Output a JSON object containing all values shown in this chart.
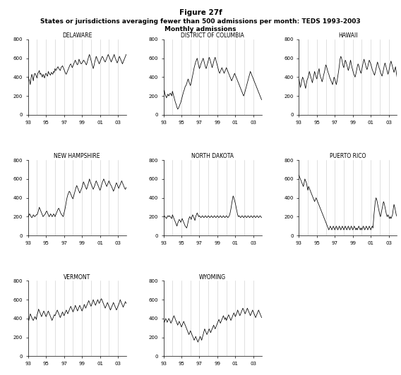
{
  "title_line1": "Figure 27f",
  "title_line2": "States or jurisdictions averaging fewer than 500 admissions per month: TEDS 1993-2003",
  "title_line3": "Monthly admissions",
  "xlim": [
    0,
    131
  ],
  "ylim": [
    0,
    800
  ],
  "yticks": [
    0,
    200,
    400,
    600,
    800
  ],
  "xtick_positions": [
    0,
    24,
    48,
    72,
    96,
    120
  ],
  "xtick_labels": [
    "93",
    "95",
    "97",
    "99",
    "01",
    "03"
  ],
  "vline_positions": [
    12,
    24,
    36,
    48,
    60,
    72,
    84,
    96,
    108,
    120
  ],
  "line_color": "#000000",
  "background_color": "#ffffff",
  "delaware": [
    410,
    380,
    360,
    320,
    390,
    430,
    400,
    360,
    420,
    440,
    430,
    410,
    390,
    440,
    450,
    470,
    430,
    440,
    420,
    400,
    430,
    410,
    390,
    430,
    440,
    420,
    410,
    460,
    440,
    430,
    420,
    450,
    440,
    430,
    460,
    450,
    490,
    470,
    480,
    500,
    510,
    490,
    480,
    470,
    500,
    510,
    520,
    500,
    480,
    460,
    440,
    430,
    450,
    470,
    490,
    510,
    530,
    540,
    520,
    500,
    520,
    540,
    560,
    580,
    560,
    540,
    530,
    550,
    590,
    570,
    550,
    540,
    550,
    560,
    580,
    570,
    560,
    540,
    530,
    560,
    590,
    620,
    640,
    610,
    580,
    550,
    520,
    490,
    520,
    560,
    590,
    620,
    600,
    580,
    560,
    540,
    560,
    580,
    600,
    620,
    610,
    590,
    570,
    560,
    580,
    600,
    620,
    640,
    620,
    600,
    580,
    560,
    580,
    600,
    620,
    640,
    610,
    590,
    570,
    550,
    570,
    600,
    620,
    600,
    580,
    560,
    540,
    560,
    580,
    600,
    620,
    640
  ],
  "district_of_columbia": [
    230,
    260,
    220,
    200,
    180,
    200,
    220,
    200,
    210,
    230,
    220,
    200,
    250,
    220,
    190,
    160,
    130,
    110,
    80,
    60,
    70,
    90,
    110,
    130,
    160,
    190,
    220,
    250,
    270,
    300,
    310,
    330,
    360,
    380,
    350,
    330,
    310,
    340,
    380,
    420,
    460,
    500,
    530,
    560,
    580,
    600,
    560,
    520,
    490,
    510,
    540,
    560,
    580,
    600,
    570,
    540,
    510,
    490,
    520,
    550,
    580,
    610,
    590,
    560,
    530,
    500,
    530,
    560,
    590,
    610,
    580,
    550,
    520,
    490,
    460,
    440,
    460,
    480,
    500,
    480,
    460,
    440,
    460,
    480,
    500,
    480,
    460,
    440,
    420,
    400,
    380,
    360,
    380,
    400,
    420,
    440,
    420,
    400,
    380,
    360,
    340,
    320,
    300,
    280,
    260,
    240,
    220,
    200,
    220,
    250,
    280,
    310,
    340,
    370,
    400,
    430,
    460,
    440,
    420,
    400,
    380,
    360,
    340,
    320,
    300,
    280,
    260,
    240,
    220,
    200,
    180,
    160
  ],
  "hawaii": [
    380,
    340,
    290,
    320,
    370,
    400,
    380,
    350,
    310,
    280,
    330,
    370,
    390,
    420,
    460,
    430,
    400,
    370,
    340,
    380,
    420,
    460,
    430,
    400,
    380,
    420,
    460,
    490,
    430,
    400,
    380,
    350,
    380,
    420,
    450,
    490,
    530,
    510,
    480,
    450,
    430,
    400,
    380,
    360,
    340,
    320,
    360,
    400,
    380,
    350,
    320,
    360,
    410,
    460,
    520,
    590,
    620,
    600,
    560,
    520,
    500,
    540,
    580,
    560,
    530,
    500,
    470,
    500,
    540,
    580,
    540,
    500,
    470,
    440,
    420,
    400,
    430,
    470,
    510,
    540,
    520,
    490,
    460,
    440,
    480,
    520,
    560,
    590,
    560,
    530,
    500,
    480,
    510,
    550,
    580,
    560,
    540,
    510,
    480,
    460,
    440,
    420,
    450,
    490,
    530,
    560,
    530,
    500,
    480,
    450,
    430,
    410,
    440,
    480,
    520,
    550,
    520,
    490,
    460,
    430,
    460,
    500,
    540,
    570,
    540,
    510,
    480,
    450,
    480,
    510,
    450,
    400
  ],
  "new_hampshire": [
    200,
    210,
    230,
    220,
    200,
    190,
    200,
    220,
    210,
    200,
    210,
    220,
    220,
    240,
    270,
    300,
    280,
    260,
    240,
    220,
    200,
    210,
    220,
    230,
    250,
    260,
    240,
    220,
    200,
    210,
    230,
    220,
    200,
    210,
    230,
    220,
    200,
    220,
    240,
    260,
    280,
    290,
    270,
    250,
    230,
    220,
    210,
    200,
    240,
    270,
    310,
    360,
    400,
    430,
    450,
    470,
    460,
    440,
    420,
    400,
    390,
    420,
    450,
    480,
    510,
    530,
    510,
    490,
    470,
    450,
    470,
    490,
    510,
    540,
    570,
    550,
    530,
    510,
    490,
    510,
    540,
    570,
    600,
    570,
    550,
    530,
    510,
    490,
    510,
    530,
    560,
    580,
    560,
    540,
    520,
    500,
    480,
    500,
    530,
    560,
    580,
    600,
    580,
    560,
    540,
    520,
    540,
    560,
    580,
    560,
    540,
    530,
    510,
    490,
    470,
    490,
    510,
    540,
    560,
    540,
    520,
    500,
    520,
    540,
    560,
    580,
    560,
    540,
    520,
    500,
    490,
    510
  ],
  "north_dakota": [
    200,
    210,
    200,
    190,
    180,
    200,
    210,
    200,
    210,
    200,
    190,
    180,
    220,
    200,
    180,
    160,
    140,
    120,
    100,
    130,
    150,
    170,
    160,
    140,
    160,
    180,
    160,
    140,
    120,
    100,
    90,
    80,
    110,
    150,
    180,
    200,
    190,
    170,
    200,
    220,
    200,
    180,
    160,
    200,
    220,
    240,
    220,
    200,
    210,
    200,
    190,
    200,
    210,
    200,
    190,
    200,
    210,
    200,
    190,
    200,
    210,
    200,
    190,
    200,
    210,
    200,
    190,
    200,
    210,
    200,
    190,
    200,
    210,
    200,
    190,
    200,
    210,
    200,
    190,
    200,
    210,
    200,
    190,
    200,
    210,
    200,
    190,
    200,
    210,
    240,
    280,
    330,
    380,
    420,
    400,
    370,
    340,
    300,
    260,
    220,
    200,
    210,
    200,
    190,
    200,
    210,
    200,
    190,
    200,
    210,
    200,
    190,
    200,
    210,
    200,
    190,
    200,
    210,
    200,
    190,
    200,
    210,
    200,
    190,
    200,
    210,
    200,
    190,
    200,
    210,
    200,
    190
  ],
  "puerto_rico": [
    640,
    620,
    600,
    580,
    560,
    540,
    520,
    560,
    600,
    580,
    560,
    520,
    480,
    520,
    500,
    480,
    460,
    440,
    420,
    400,
    380,
    360,
    380,
    400,
    380,
    360,
    340,
    320,
    300,
    280,
    260,
    240,
    220,
    200,
    180,
    160,
    140,
    120,
    100,
    80,
    60,
    80,
    100,
    80,
    60,
    80,
    100,
    80,
    60,
    80,
    100,
    80,
    60,
    80,
    100,
    80,
    60,
    80,
    100,
    80,
    60,
    80,
    100,
    80,
    60,
    80,
    100,
    80,
    60,
    80,
    100,
    80,
    60,
    80,
    100,
    80,
    60,
    80,
    60,
    80,
    100,
    80,
    60,
    80,
    60,
    80,
    100,
    80,
    60,
    80,
    100,
    80,
    60,
    80,
    100,
    80,
    60,
    80,
    100,
    80,
    200,
    280,
    360,
    400,
    380,
    340,
    300,
    260,
    220,
    200,
    240,
    280,
    320,
    360,
    340,
    300,
    260,
    220,
    200,
    220,
    200,
    180,
    200,
    180,
    200,
    220,
    280,
    330,
    300,
    260,
    220,
    200
  ],
  "vermont": [
    400,
    380,
    420,
    450,
    430,
    410,
    390,
    380,
    400,
    420,
    410,
    390,
    440,
    460,
    500,
    480,
    460,
    440,
    420,
    440,
    460,
    480,
    460,
    440,
    420,
    440,
    460,
    480,
    460,
    440,
    420,
    400,
    380,
    400,
    420,
    440,
    430,
    450,
    470,
    490,
    470,
    450,
    430,
    410,
    430,
    450,
    470,
    450,
    430,
    450,
    470,
    490,
    470,
    450,
    470,
    490,
    510,
    530,
    510,
    490,
    470,
    490,
    510,
    540,
    520,
    500,
    480,
    500,
    520,
    540,
    520,
    500,
    480,
    500,
    520,
    550,
    530,
    510,
    530,
    550,
    570,
    590,
    570,
    550,
    530,
    550,
    570,
    600,
    580,
    560,
    540,
    560,
    580,
    600,
    580,
    560,
    580,
    600,
    610,
    590,
    570,
    550,
    530,
    510,
    530,
    550,
    570,
    550,
    530,
    510,
    490,
    510,
    530,
    550,
    570,
    550,
    530,
    510,
    490,
    510,
    530,
    550,
    570,
    600,
    580,
    560,
    540,
    520,
    540,
    560,
    580,
    560
  ],
  "wyoming": [
    380,
    360,
    380,
    400,
    380,
    360,
    380,
    400,
    390,
    370,
    350,
    370,
    390,
    410,
    430,
    410,
    390,
    370,
    350,
    330,
    350,
    370,
    350,
    330,
    310,
    330,
    350,
    370,
    350,
    330,
    310,
    290,
    270,
    250,
    230,
    250,
    270,
    250,
    230,
    210,
    190,
    170,
    190,
    210,
    190,
    170,
    150,
    170,
    190,
    210,
    190,
    170,
    200,
    230,
    260,
    290,
    270,
    250,
    230,
    250,
    270,
    290,
    270,
    250,
    270,
    290,
    310,
    330,
    310,
    290,
    310,
    330,
    350,
    370,
    390,
    370,
    350,
    370,
    390,
    410,
    430,
    410,
    390,
    410,
    380,
    400,
    420,
    440,
    420,
    400,
    380,
    400,
    420,
    440,
    460,
    440,
    420,
    440,
    460,
    490,
    470,
    450,
    430,
    450,
    470,
    490,
    510,
    490,
    470,
    450,
    470,
    490,
    510,
    490,
    470,
    450,
    430,
    450,
    470,
    490,
    470,
    450,
    430,
    410,
    430,
    450,
    470,
    490,
    470,
    450,
    430,
    410
  ]
}
